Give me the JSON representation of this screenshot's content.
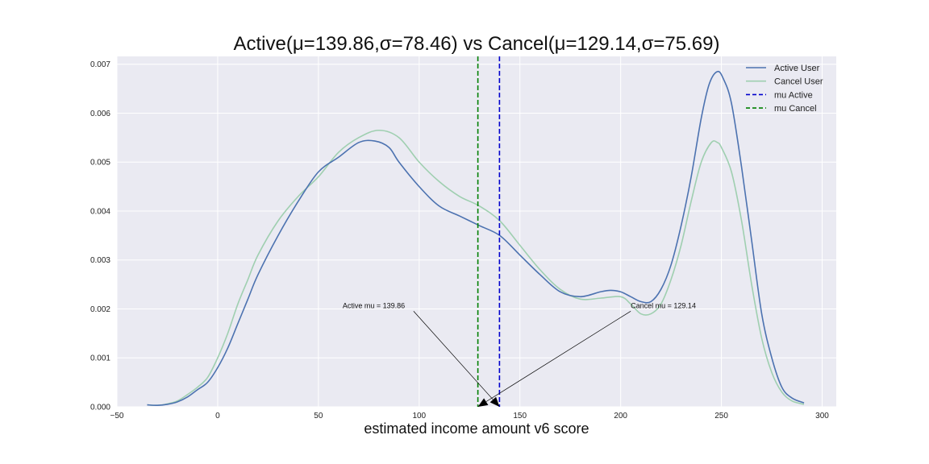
{
  "chart_data": {
    "type": "line",
    "title": "Active(μ=139.86,σ=78.46) vs Cancel(μ=129.14,σ=75.69)",
    "xlabel": "estimated income amount v6 score",
    "ylabel": "",
    "xlim": [
      -50,
      307
    ],
    "ylim": [
      0,
      0.00716
    ],
    "xticks": [
      -50,
      0,
      50,
      100,
      150,
      200,
      250,
      300
    ],
    "xtick_labels": [
      "−50",
      "0",
      "50",
      "100",
      "150",
      "200",
      "250",
      "300"
    ],
    "yticks": [
      0,
      0.001,
      0.002,
      0.003,
      0.004,
      0.005,
      0.006,
      0.007
    ],
    "ytick_labels": [
      "0.000",
      "0.001",
      "0.002",
      "0.003",
      "0.004",
      "0.005",
      "0.006",
      "0.007"
    ],
    "grid": true,
    "legend_position": "top-right",
    "series": [
      {
        "name": "Active User",
        "color": "#4c72b0",
        "style": "solid",
        "x": [
          -35,
          -30,
          -25,
          -20,
          -15,
          -10,
          -5,
          0,
          5,
          10,
          15,
          20,
          30,
          40,
          50,
          60,
          70,
          78,
          85,
          90,
          100,
          110,
          120,
          130,
          140,
          150,
          160,
          170,
          180,
          190,
          195,
          200,
          205,
          210,
          215,
          220,
          225,
          230,
          235,
          240,
          244,
          248,
          251,
          255,
          260,
          265,
          270,
          275,
          280,
          285,
          291
        ],
        "y": [
          4e-05,
          3e-05,
          5e-05,
          0.0001,
          0.0002,
          0.00035,
          0.0005,
          0.0008,
          0.0012,
          0.0017,
          0.0022,
          0.0027,
          0.0035,
          0.0042,
          0.0048,
          0.0051,
          0.0054,
          0.00543,
          0.0053,
          0.005,
          0.0045,
          0.0041,
          0.0039,
          0.0037,
          0.0035,
          0.0031,
          0.0027,
          0.00235,
          0.00225,
          0.00235,
          0.00238,
          0.00235,
          0.00225,
          0.00215,
          0.00215,
          0.0024,
          0.0029,
          0.0037,
          0.0047,
          0.0059,
          0.0066,
          0.00685,
          0.0067,
          0.0062,
          0.0049,
          0.0034,
          0.0019,
          0.001,
          0.0004,
          0.00018,
          8e-05
        ]
      },
      {
        "name": "Cancel User",
        "color": "#9fcfb0",
        "style": "solid",
        "x": [
          -35,
          -30,
          -25,
          -20,
          -15,
          -10,
          -5,
          0,
          5,
          10,
          15,
          20,
          30,
          40,
          50,
          60,
          70,
          80,
          90,
          100,
          110,
          120,
          130,
          140,
          150,
          160,
          170,
          180,
          190,
          200,
          205,
          210,
          215,
          220,
          225,
          230,
          235,
          240,
          245,
          248,
          250,
          255,
          260,
          265,
          270,
          275,
          280,
          285,
          291
        ],
        "y": [
          4e-05,
          3e-05,
          6e-05,
          0.00012,
          0.00025,
          0.0004,
          0.0006,
          0.001,
          0.0015,
          0.0021,
          0.0026,
          0.0031,
          0.0038,
          0.0043,
          0.0047,
          0.0052,
          0.0055,
          0.00565,
          0.0055,
          0.005,
          0.0046,
          0.0043,
          0.0041,
          0.0038,
          0.0033,
          0.0028,
          0.0024,
          0.0022,
          0.00222,
          0.00225,
          0.0021,
          0.0019,
          0.0019,
          0.0021,
          0.0026,
          0.0033,
          0.0042,
          0.005,
          0.0054,
          0.0054,
          0.0053,
          0.0048,
          0.0038,
          0.0025,
          0.0014,
          0.0007,
          0.0003,
          0.00012,
          5e-05
        ]
      }
    ],
    "vlines": [
      {
        "name": "mu Active",
        "x": 139.86,
        "color": "#0000cc",
        "style": "dashed"
      },
      {
        "name": "mu Cancel",
        "x": 129.14,
        "color": "#008000",
        "style": "dashed"
      }
    ],
    "annotations": [
      {
        "text": "Active mu = 139.86",
        "text_x": 62,
        "text_y": 0.00202,
        "point_x": 139.86,
        "point_y": 0
      },
      {
        "text": "Cancel mu = 129.14",
        "text_x": 205,
        "text_y": 0.00202,
        "point_x": 129.14,
        "point_y": 0
      }
    ]
  }
}
